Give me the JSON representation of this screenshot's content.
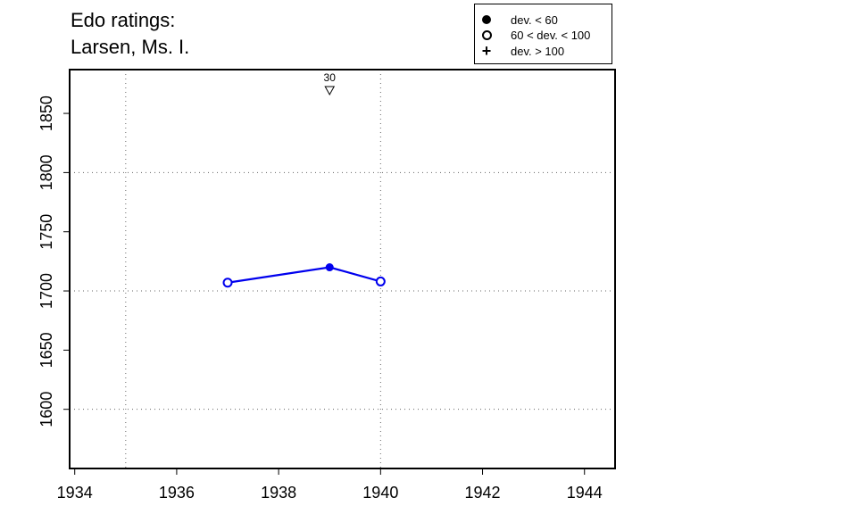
{
  "title_lines": [
    "Edo ratings:",
    "Larsen, Ms. I."
  ],
  "legend": [
    {
      "symbol": "filled-circle",
      "label": "dev. < 60"
    },
    {
      "symbol": "open-circle",
      "label": "60 < dev. < 100"
    },
    {
      "symbol": "plus",
      "label": "dev. > 100"
    }
  ],
  "chart_data": {
    "type": "line",
    "xlim": [
      1933.9,
      1944.6
    ],
    "ylim": [
      1550,
      1887
    ],
    "x_ticks": [
      1934,
      1936,
      1938,
      1940,
      1942,
      1944
    ],
    "y_ticks": [
      1600,
      1650,
      1700,
      1750,
      1800,
      1850
    ],
    "x_grid": [
      1935,
      1940
    ],
    "y_grid": [
      1600,
      1700,
      1800
    ],
    "grid": true,
    "series_color": "#0000ee",
    "points": [
      {
        "x": 1937,
        "y": 1707,
        "marker": "open-circle"
      },
      {
        "x": 1939,
        "y": 1720,
        "marker": "filled-circle"
      },
      {
        "x": 1940,
        "y": 1708,
        "marker": "open-circle"
      }
    ],
    "offscale_markers": [
      {
        "x": 1939,
        "label": "30",
        "direction": "up"
      }
    ],
    "legend_position": "top-right"
  }
}
